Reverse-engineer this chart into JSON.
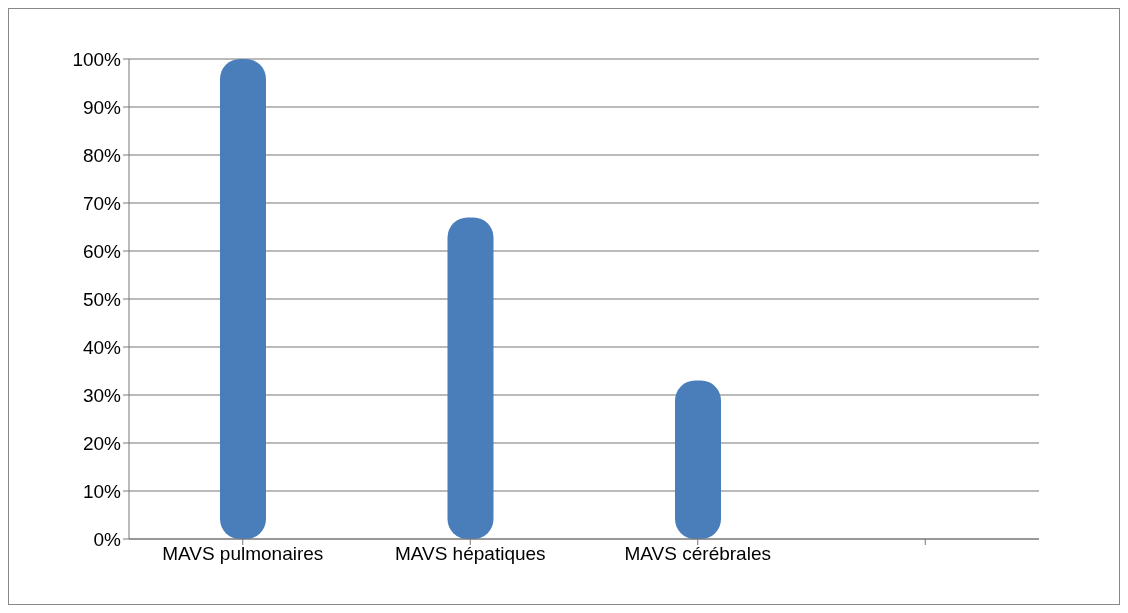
{
  "chart_data": {
    "type": "bar",
    "categories": [
      "MAVS pulmonaires",
      "MAVS hépatiques",
      "MAVS cérébrales",
      null
    ],
    "values": [
      100,
      67,
      33,
      null
    ],
    "color": "#4a7ebb",
    "ylim": [
      0,
      100
    ],
    "yticks": [
      {
        "value": 0,
        "label": "0%"
      },
      {
        "value": 10,
        "label": "10%"
      },
      {
        "value": 20,
        "label": "20%"
      },
      {
        "value": 30,
        "label": "30%"
      },
      {
        "value": 40,
        "label": "40%"
      },
      {
        "value": 50,
        "label": "50%"
      },
      {
        "value": 60,
        "label": "60%"
      },
      {
        "value": 70,
        "label": "70%"
      },
      {
        "value": 80,
        "label": "80%"
      },
      {
        "value": 90,
        "label": "90%"
      },
      {
        "value": 100,
        "label": "100%"
      }
    ],
    "grid": "y",
    "legend": false
  }
}
